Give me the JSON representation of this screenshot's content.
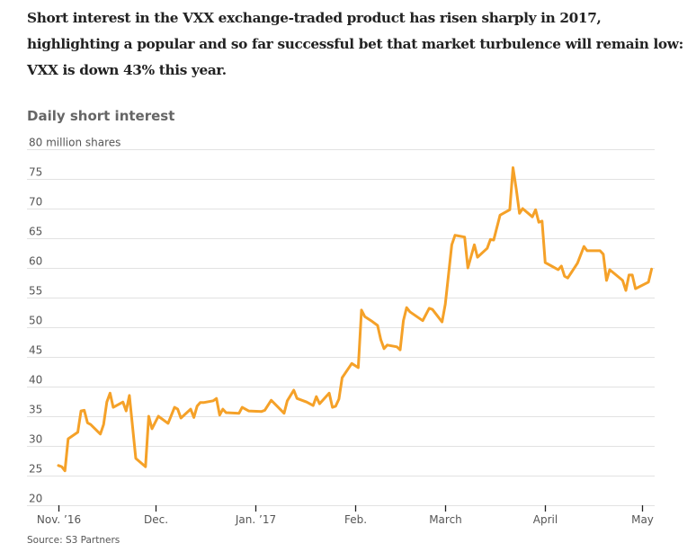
{
  "headline": "Short interest in the VXX exchange-traded product has risen sharply in 2017, highlighting a popular and so far successful bet that market turbulence will remain low: VXX is down 43% this year.",
  "source": "Source: S3 Partners",
  "colors": {
    "line": "#F5A128",
    "grid": "#E2E2E2",
    "text": "#555555",
    "headline": "#222222"
  },
  "chart_data": {
    "type": "line",
    "title": "Daily short interest",
    "xlabel": "",
    "ylabel": "million shares",
    "ylim": [
      20,
      80
    ],
    "xlim": [
      "2016-11-01",
      "2017-05-06"
    ],
    "grid": true,
    "legend": "none",
    "y_ticks": [
      {
        "value": 80,
        "label": "80 million shares"
      },
      {
        "value": 75,
        "label": "75"
      },
      {
        "value": 70,
        "label": "70"
      },
      {
        "value": 65,
        "label": "65"
      },
      {
        "value": 60,
        "label": "60"
      },
      {
        "value": 55,
        "label": "55"
      },
      {
        "value": 50,
        "label": "50"
      },
      {
        "value": 45,
        "label": "45"
      },
      {
        "value": 40,
        "label": "40"
      },
      {
        "value": 35,
        "label": "35"
      },
      {
        "value": 30,
        "label": "30"
      },
      {
        "value": 25,
        "label": "25"
      },
      {
        "value": 20,
        "label": "20"
      }
    ],
    "x_ticks": [
      {
        "date": "2016-11-01",
        "label": "Nov. ’16"
      },
      {
        "date": "2016-12-01",
        "label": "Dec."
      },
      {
        "date": "2017-01-01",
        "label": "Jan. ’17"
      },
      {
        "date": "2017-02-01",
        "label": "Feb."
      },
      {
        "date": "2017-03-01",
        "label": "March"
      },
      {
        "date": "2017-04-01",
        "label": "April"
      },
      {
        "date": "2017-05-01",
        "label": "May"
      }
    ],
    "series": [
      {
        "name": "VXX short interest",
        "points": [
          [
            "2016-11-01",
            26.7
          ],
          [
            "2016-11-02",
            26.5
          ],
          [
            "2016-11-03",
            25.8
          ],
          [
            "2016-11-04",
            31.2
          ],
          [
            "2016-11-07",
            32.3
          ],
          [
            "2016-11-08",
            35.9
          ],
          [
            "2016-11-09",
            36.0
          ],
          [
            "2016-11-10",
            33.9
          ],
          [
            "2016-11-11",
            33.6
          ],
          [
            "2016-11-14",
            32.0
          ],
          [
            "2016-11-15",
            33.6
          ],
          [
            "2016-11-16",
            37.4
          ],
          [
            "2016-11-17",
            38.9
          ],
          [
            "2016-11-18",
            36.5
          ],
          [
            "2016-11-21",
            37.4
          ],
          [
            "2016-11-22",
            35.9
          ],
          [
            "2016-11-23",
            38.5
          ],
          [
            "2016-11-25",
            27.9
          ],
          [
            "2016-11-28",
            26.5
          ],
          [
            "2016-11-29",
            35.0
          ],
          [
            "2016-11-30",
            32.9
          ],
          [
            "2016-12-02",
            35.0
          ],
          [
            "2016-12-05",
            33.8
          ],
          [
            "2016-12-07",
            36.5
          ],
          [
            "2016-12-08",
            36.2
          ],
          [
            "2016-12-09",
            34.7
          ],
          [
            "2016-12-12",
            36.2
          ],
          [
            "2016-12-13",
            34.8
          ],
          [
            "2016-12-14",
            36.7
          ],
          [
            "2016-12-15",
            37.3
          ],
          [
            "2016-12-16",
            37.3
          ],
          [
            "2016-12-19",
            37.6
          ],
          [
            "2016-12-20",
            38.0
          ],
          [
            "2016-12-21",
            35.2
          ],
          [
            "2016-12-22",
            36.2
          ],
          [
            "2016-12-23",
            35.6
          ],
          [
            "2016-12-27",
            35.5
          ],
          [
            "2016-12-28",
            36.5
          ],
          [
            "2016-12-30",
            35.9
          ],
          [
            "2017-01-03",
            35.8
          ],
          [
            "2017-01-04",
            36.0
          ],
          [
            "2017-01-06",
            37.7
          ],
          [
            "2017-01-08",
            36.6
          ],
          [
            "2017-01-10",
            35.5
          ],
          [
            "2017-01-11",
            37.6
          ],
          [
            "2017-01-13",
            39.4
          ],
          [
            "2017-01-14",
            38.0
          ],
          [
            "2017-01-17",
            37.4
          ],
          [
            "2017-01-19",
            36.8
          ],
          [
            "2017-01-20",
            38.3
          ],
          [
            "2017-01-21",
            37.1
          ],
          [
            "2017-01-24",
            38.9
          ],
          [
            "2017-01-25",
            36.5
          ],
          [
            "2017-01-26",
            36.7
          ],
          [
            "2017-01-27",
            37.9
          ],
          [
            "2017-01-28",
            41.5
          ],
          [
            "2017-01-29",
            42.3
          ],
          [
            "2017-01-31",
            43.9
          ],
          [
            "2017-02-02",
            43.2
          ],
          [
            "2017-02-03",
            52.9
          ],
          [
            "2017-02-04",
            51.8
          ],
          [
            "2017-02-06",
            51.1
          ],
          [
            "2017-02-08",
            50.3
          ],
          [
            "2017-02-09",
            47.9
          ],
          [
            "2017-02-10",
            46.4
          ],
          [
            "2017-02-11",
            47.0
          ],
          [
            "2017-02-14",
            46.7
          ],
          [
            "2017-02-15",
            46.2
          ],
          [
            "2017-02-16",
            51.1
          ],
          [
            "2017-02-17",
            53.3
          ],
          [
            "2017-02-18",
            52.6
          ],
          [
            "2017-02-22",
            51.1
          ],
          [
            "2017-02-24",
            53.2
          ],
          [
            "2017-02-25",
            53.0
          ],
          [
            "2017-02-28",
            50.9
          ],
          [
            "2017-03-01",
            53.9
          ],
          [
            "2017-03-03",
            63.9
          ],
          [
            "2017-03-04",
            65.5
          ],
          [
            "2017-03-07",
            65.2
          ],
          [
            "2017-03-08",
            60.0
          ],
          [
            "2017-03-10",
            63.9
          ],
          [
            "2017-03-11",
            61.8
          ],
          [
            "2017-03-14",
            63.3
          ],
          [
            "2017-03-15",
            64.8
          ],
          [
            "2017-03-16",
            64.7
          ],
          [
            "2017-03-18",
            68.9
          ],
          [
            "2017-03-21",
            69.8
          ],
          [
            "2017-03-22",
            76.9
          ],
          [
            "2017-03-23",
            73.3
          ],
          [
            "2017-03-24",
            69.2
          ],
          [
            "2017-03-25",
            70.0
          ],
          [
            "2017-03-28",
            68.6
          ],
          [
            "2017-03-29",
            69.8
          ],
          [
            "2017-03-30",
            67.7
          ],
          [
            "2017-03-31",
            67.9
          ],
          [
            "2017-04-01",
            60.9
          ],
          [
            "2017-04-03",
            60.3
          ],
          [
            "2017-04-05",
            59.7
          ],
          [
            "2017-04-06",
            60.3
          ],
          [
            "2017-04-07",
            58.6
          ],
          [
            "2017-04-08",
            58.3
          ],
          [
            "2017-04-11",
            60.8
          ],
          [
            "2017-04-13",
            63.6
          ],
          [
            "2017-04-14",
            62.9
          ],
          [
            "2017-04-18",
            62.9
          ],
          [
            "2017-04-19",
            62.3
          ],
          [
            "2017-04-20",
            57.9
          ],
          [
            "2017-04-21",
            59.7
          ],
          [
            "2017-04-25",
            57.9
          ],
          [
            "2017-04-26",
            56.2
          ],
          [
            "2017-04-27",
            58.8
          ],
          [
            "2017-04-28",
            58.8
          ],
          [
            "2017-04-29",
            56.5
          ],
          [
            "2017-05-03",
            57.6
          ],
          [
            "2017-05-04",
            59.8
          ]
        ]
      }
    ]
  }
}
